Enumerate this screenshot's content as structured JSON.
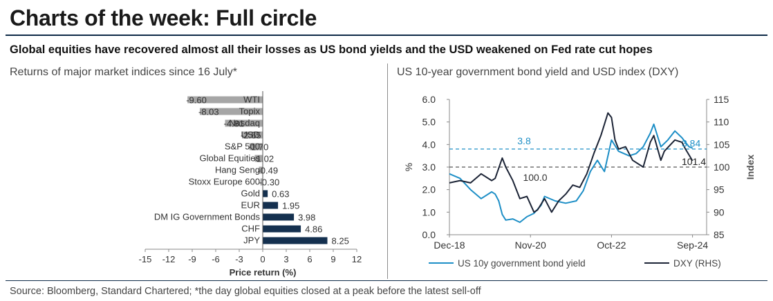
{
  "header": {
    "title": "Charts of the week: Full circle",
    "subtitle": "Global equities have recovered almost all their losses as US bond yields and the USD weakened on Fed rate cut hopes"
  },
  "footer": {
    "source": "Source: Bloomberg, Standard Chartered; *the day global equities closed at a peak before the latest sell-off"
  },
  "colors": {
    "navy": "#14304f",
    "grey": "#a6a6a6",
    "teal": "#1c8ec6",
    "black": "#1b2335"
  },
  "chart_data": [
    {
      "type": "bar",
      "orientation": "horizontal",
      "title": "Returns of major market indices since 16 July*",
      "xlabel": "Price return (%)",
      "xlim": [
        -15,
        12
      ],
      "xticks": [
        "-15",
        "-12",
        "-9",
        "-6",
        "-3",
        "0",
        "3",
        "6",
        "9",
        "12"
      ],
      "categories": [
        "WTI",
        "Topix",
        "Nasdaq",
        "USD",
        "S&P 500",
        "Global Equities",
        "Hang Seng",
        "Stoxx Europe 600",
        "Gold",
        "EUR",
        "DM IG Government Bonds",
        "CHF",
        "JPY"
      ],
      "values": [
        -9.6,
        -8.03,
        -4.81,
        -2.65,
        -1.7,
        -1.02,
        -0.49,
        -0.3,
        0.63,
        1.95,
        3.98,
        4.86,
        8.25
      ],
      "labels": [
        "-9.60",
        "-8.03",
        "-4.81",
        "-2.65",
        "-1.70",
        "-1.02",
        "-0.49",
        "-0.30",
        "0.63",
        "1.95",
        "3.98",
        "4.86",
        "8.25"
      ]
    },
    {
      "type": "line",
      "title": "US 10-year government bond yield and USD index (DXY)",
      "xticks": [
        "Dec-18",
        "Nov-20",
        "Oct-22",
        "Sep-24"
      ],
      "x_range": [
        "2018-12",
        "2024-09"
      ],
      "ylabel_left": "%",
      "ylim_left": [
        0,
        6
      ],
      "yticks_left": [
        "0.0",
        "1.0",
        "2.0",
        "3.0",
        "4.0",
        "5.0",
        "6.0"
      ],
      "ylabel_right": "Index",
      "ylim_right": [
        85,
        115
      ],
      "yticks_right": [
        "85",
        "90",
        "95",
        "100",
        "105",
        "110",
        "115"
      ],
      "reference_lines": [
        {
          "axis": "left",
          "value": 3.8,
          "label": "3.8"
        },
        {
          "axis": "right",
          "value": 100.0,
          "label": "100.0"
        }
      ],
      "end_labels": {
        "yield": "3.84",
        "dxy": "101.4"
      },
      "series": [
        {
          "name": "US 10y government bond yield",
          "axis": "left",
          "x": [
            "2018-12",
            "2019-03",
            "2019-06",
            "2019-09",
            "2019-12",
            "2020-01",
            "2020-02",
            "2020-03",
            "2020-04",
            "2020-06",
            "2020-08",
            "2020-10",
            "2020-12",
            "2021-02",
            "2021-03",
            "2021-06",
            "2021-09",
            "2021-12",
            "2022-02",
            "2022-04",
            "2022-06",
            "2022-08",
            "2022-10",
            "2022-12",
            "2023-03",
            "2023-05",
            "2023-07",
            "2023-09",
            "2023-10",
            "2023-12",
            "2024-02",
            "2024-04",
            "2024-06",
            "2024-08",
            "2024-09"
          ],
          "y": [
            2.7,
            2.5,
            2.0,
            1.6,
            1.9,
            1.8,
            1.5,
            0.9,
            0.65,
            0.7,
            0.55,
            0.8,
            0.95,
            1.3,
            1.7,
            1.5,
            1.4,
            1.5,
            1.95,
            2.8,
            3.3,
            2.8,
            4.2,
            3.7,
            3.5,
            3.6,
            3.9,
            4.5,
            4.9,
            3.9,
            4.2,
            4.6,
            4.3,
            3.9,
            3.84
          ]
        },
        {
          "name": "DXY (RHS)",
          "axis": "right",
          "x": [
            "2018-12",
            "2019-03",
            "2019-06",
            "2019-09",
            "2019-12",
            "2020-01",
            "2020-03",
            "2020-04",
            "2020-06",
            "2020-08",
            "2020-10",
            "2020-12",
            "2021-01",
            "2021-03",
            "2021-05",
            "2021-07",
            "2021-09",
            "2021-11",
            "2022-01",
            "2022-03",
            "2022-05",
            "2022-07",
            "2022-09",
            "2022-10",
            "2022-11",
            "2022-12",
            "2023-02",
            "2023-04",
            "2023-07",
            "2023-09",
            "2023-10",
            "2023-12",
            "2024-01",
            "2024-04",
            "2024-06",
            "2024-07",
            "2024-09"
          ],
          "y": [
            96.5,
            97,
            96.5,
            98.5,
            97,
            97.5,
            102,
            100,
            97,
            93,
            93.5,
            90,
            90.5,
            93,
            90,
            92.5,
            94,
            96,
            95.5,
            98.5,
            103,
            107,
            112,
            111,
            106,
            104,
            104.5,
            101.5,
            100,
            105.5,
            107,
            101.5,
            103.5,
            106,
            105.5,
            104,
            101.4
          ]
        }
      ],
      "legend": "bottom"
    }
  ]
}
